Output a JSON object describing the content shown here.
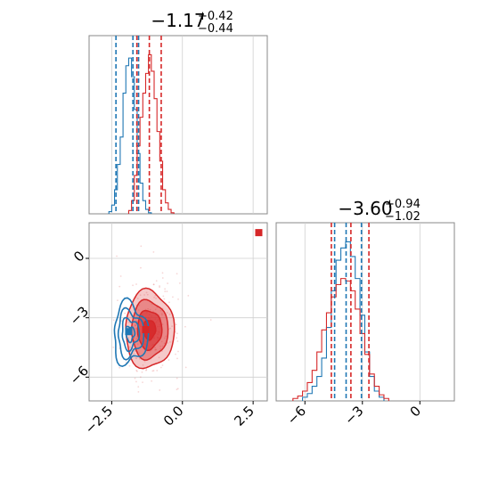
{
  "chart_data": [
    {
      "panel": "marginal-param-1",
      "type": "histogram",
      "title": {
        "median": "−1.17",
        "plus": "+0.42",
        "minus": "−0.44"
      },
      "xlim": [
        -3.3,
        3.0
      ],
      "grid": true,
      "series": [
        {
          "color": "#1f77b4",
          "quantiles": [
            -2.35,
            -1.75,
            -1.55
          ],
          "bins": [
            -2.55,
            -2.45,
            -2.35,
            -2.25,
            -2.15,
            -2.05,
            -1.95,
            -1.85,
            -1.75,
            -1.65,
            -1.55,
            -1.45,
            -1.35,
            -1.25,
            -1.15
          ],
          "counts": [
            2,
            8,
            22,
            45,
            70,
            110,
            135,
            142,
            125,
            95,
            55,
            28,
            12,
            4,
            1
          ]
        },
        {
          "color": "#d62728",
          "quantiles": [
            -1.61,
            -1.17,
            -0.75
          ],
          "bins": [
            -1.85,
            -1.75,
            -1.65,
            -1.55,
            -1.45,
            -1.35,
            -1.25,
            -1.15,
            -1.05,
            -0.95,
            -0.85,
            -0.75,
            -0.65,
            -0.55,
            -0.45,
            -0.35
          ],
          "counts": [
            3,
            12,
            35,
            62,
            88,
            110,
            128,
            145,
            130,
            105,
            75,
            48,
            22,
            10,
            4,
            1
          ]
        }
      ]
    },
    {
      "panel": "marginal-param-2",
      "type": "histogram",
      "title": {
        "median": "−3.60",
        "plus": "+0.94",
        "minus": "−1.02"
      },
      "xlim": [
        -7.5,
        1.8
      ],
      "grid": true,
      "series": [
        {
          "color": "#1f77b4",
          "quantiles": [
            -4.45,
            -3.85,
            -3.05
          ],
          "bins": [
            -6.0,
            -5.75,
            -5.5,
            -5.25,
            -5.0,
            -4.75,
            -4.5,
            -4.25,
            -4.0,
            -3.75,
            -3.5,
            -3.25,
            -3.0,
            -2.75,
            -2.5,
            -2.25,
            -2.0
          ],
          "counts": [
            3,
            6,
            12,
            20,
            35,
            60,
            90,
            115,
            125,
            130,
            118,
            100,
            70,
            40,
            20,
            8,
            3
          ]
        },
        {
          "color": "#d62728",
          "quantiles": [
            -4.62,
            -3.6,
            -2.66
          ],
          "bins": [
            -6.5,
            -6.25,
            -6.0,
            -5.75,
            -5.5,
            -5.25,
            -5.0,
            -4.75,
            -4.5,
            -4.25,
            -4.0,
            -3.75,
            -3.5,
            -3.25,
            -3.0,
            -2.75,
            -2.5,
            -2.25,
            -2.0,
            -1.75
          ],
          "counts": [
            2,
            4,
            8,
            15,
            25,
            40,
            58,
            72,
            85,
            95,
            100,
            98,
            90,
            75,
            55,
            38,
            22,
            12,
            5,
            2
          ]
        }
      ]
    },
    {
      "panel": "joint-param-1-param-2",
      "type": "contour",
      "xlim": [
        -3.3,
        3.0
      ],
      "ylim": [
        -7.2,
        1.8
      ],
      "grid": true,
      "series": [
        {
          "color": "#d62728",
          "center": [
            -1.17,
            -3.6
          ],
          "sigma": [
            0.43,
            0.98
          ],
          "levels": [
            0.5,
            1.0,
            1.5,
            2.0
          ],
          "filled": true
        },
        {
          "color": "#1f77b4",
          "center": [
            -1.85,
            -3.8
          ],
          "sigma": [
            0.3,
            0.75
          ],
          "levels": [
            0.5,
            1.0,
            1.5,
            2.0
          ],
          "filled": false
        }
      ],
      "markers": [
        {
          "color": "#d62728",
          "x": 2.7,
          "y": 1.3
        },
        {
          "color": "#1f77b4",
          "x": -1.9,
          "y": -3.7
        },
        {
          "color": "#d62728",
          "x": -1.3,
          "y": -3.6
        }
      ]
    }
  ],
  "axes": {
    "x_bottom_left_ticks": [
      "−2.5",
      "0.0",
      "2.5"
    ],
    "x_bottom_left_values": [
      -2.5,
      0.0,
      2.5
    ],
    "y_left_ticks": [
      "0",
      "−3",
      "−6"
    ],
    "y_left_values": [
      0,
      -3,
      -6
    ],
    "x_bottom_right_ticks": [
      "−6",
      "−3",
      "0"
    ],
    "x_bottom_right_values": [
      -6,
      -3,
      0
    ]
  }
}
